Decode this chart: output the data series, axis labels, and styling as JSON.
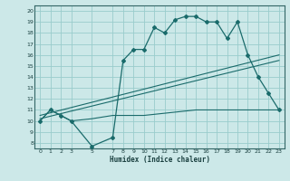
{
  "xlabel": "Humidex (Indice chaleur)",
  "bg_color": "#cce8e8",
  "grid_color": "#99cccc",
  "line_color": "#1a6b6b",
  "xlim": [
    -0.5,
    23.5
  ],
  "ylim": [
    7.5,
    20.5
  ],
  "xticks": [
    0,
    1,
    2,
    3,
    5,
    7,
    8,
    9,
    10,
    11,
    12,
    13,
    14,
    15,
    16,
    17,
    18,
    19,
    20,
    21,
    22,
    23
  ],
  "yticks": [
    8,
    9,
    10,
    11,
    12,
    13,
    14,
    15,
    16,
    17,
    18,
    19,
    20
  ],
  "series1_x": [
    0,
    1,
    2,
    3,
    5,
    7,
    8,
    9,
    10,
    11,
    12,
    13,
    14,
    15,
    16,
    17,
    18,
    19,
    20,
    21,
    22,
    23
  ],
  "series1_y": [
    10,
    11,
    10.5,
    10,
    7.7,
    8.5,
    15.5,
    16.5,
    16.5,
    18.5,
    18,
    19.2,
    19.5,
    19.5,
    19,
    19,
    17.5,
    19,
    16,
    14,
    12.5,
    11
  ],
  "series2_x": [
    0,
    23
  ],
  "series2_y": [
    10.5,
    16.0
  ],
  "series3_x": [
    0,
    23
  ],
  "series3_y": [
    10.2,
    15.5
  ],
  "series4_x": [
    0,
    1,
    2,
    3,
    5,
    7,
    8,
    9,
    10,
    11,
    12,
    13,
    14,
    15,
    16,
    17,
    18,
    19,
    20,
    21,
    22,
    23
  ],
  "series4_y": [
    10,
    11,
    10.5,
    10,
    10.2,
    10.5,
    10.5,
    10.5,
    10.5,
    10.6,
    10.7,
    10.8,
    10.9,
    11.0,
    11.0,
    11.0,
    11.0,
    11.0,
    11.0,
    11.0,
    11.0,
    11.0
  ],
  "xlabel_fontsize": 5.5,
  "tick_fontsize": 4.5
}
